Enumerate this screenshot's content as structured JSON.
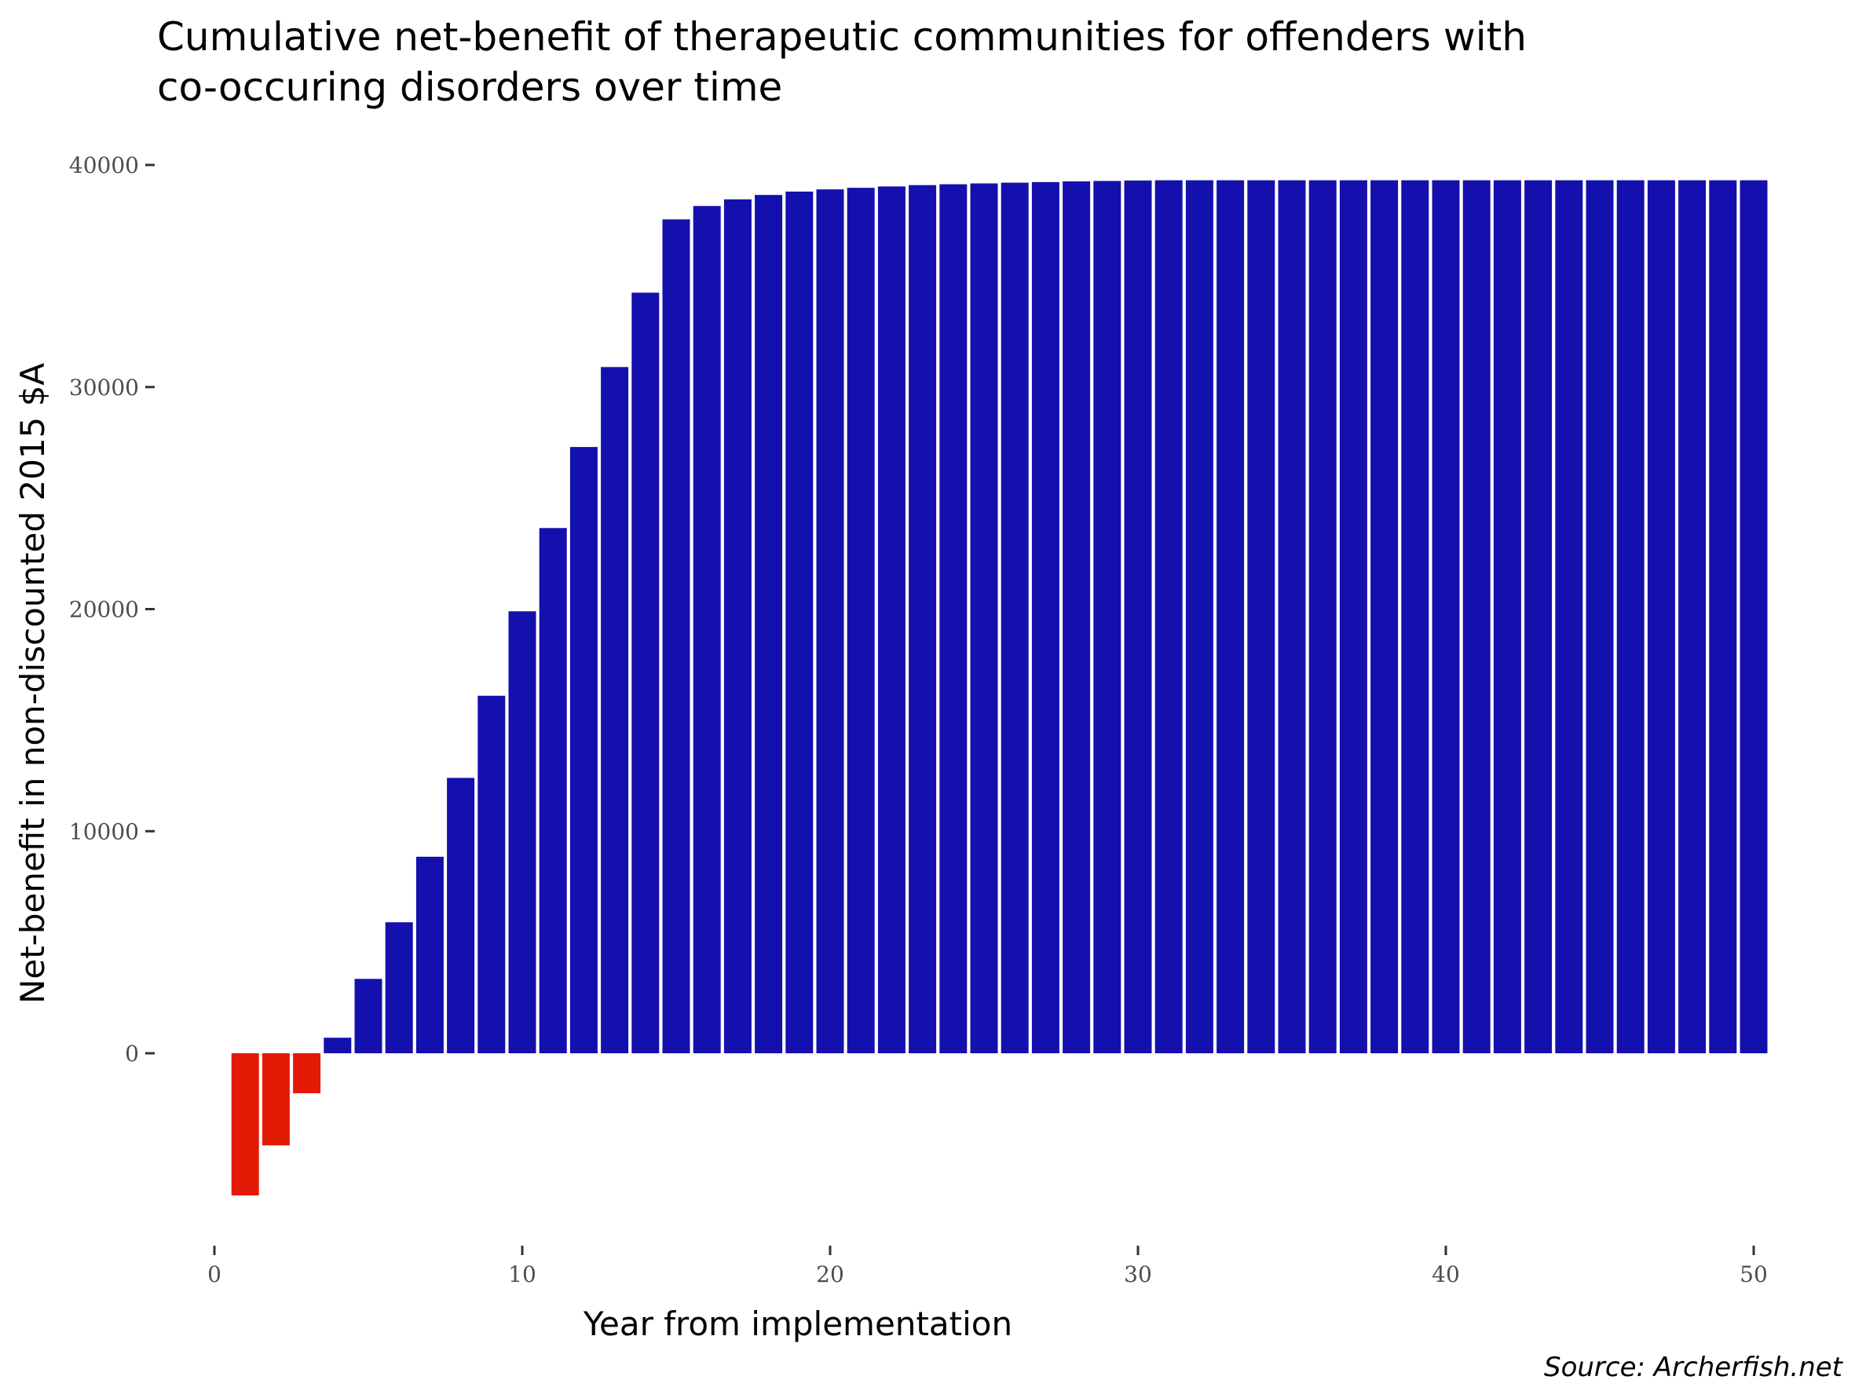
{
  "chart_data": {
    "type": "bar",
    "title_lines": [
      "Cumulative net-benefit of therapeutic communities for offenders with",
      "co-occuring disorders over time"
    ],
    "xlabel": "Year from implementation",
    "ylabel": "Net-benefit in non-discounted 2015 $A",
    "caption": "Source: Archerfish.net",
    "xlim": [
      0,
      50
    ],
    "ylim": [
      -8000,
      40000
    ],
    "x_ticks": [
      0,
      10,
      20,
      30,
      40,
      50
    ],
    "x_tick_labels": [
      "0",
      "10",
      "20",
      "30",
      "40",
      "50"
    ],
    "y_ticks": [
      0,
      10000,
      20000,
      30000,
      40000
    ],
    "y_tick_labels": [
      "0",
      "10000",
      "20000",
      "30000",
      "40000"
    ],
    "grid": false,
    "colors": {
      "negative": "#e31a06",
      "positive": "#1410ad",
      "background": "#ffffff"
    },
    "x": [
      1,
      2,
      3,
      4,
      5,
      6,
      7,
      8,
      9,
      10,
      11,
      12,
      13,
      14,
      15,
      16,
      17,
      18,
      19,
      20,
      21,
      22,
      23,
      24,
      25,
      26,
      27,
      28,
      29,
      30,
      31,
      32,
      33,
      34,
      35,
      36,
      37,
      38,
      39,
      40,
      41,
      42,
      43,
      44,
      45,
      46,
      47,
      48,
      49,
      50
    ],
    "values": [
      -6400,
      -4150,
      -1800,
      700,
      3350,
      5900,
      8850,
      12400,
      16100,
      19900,
      23650,
      27300,
      30900,
      34250,
      37550,
      38150,
      38450,
      38650,
      38800,
      38900,
      38970,
      39030,
      39090,
      39130,
      39170,
      39200,
      39230,
      39260,
      39280,
      39300,
      39310,
      39310,
      39310,
      39310,
      39310,
      39310,
      39310,
      39310,
      39310,
      39310,
      39310,
      39310,
      39310,
      39310,
      39310,
      39310,
      39310,
      39310,
      39310,
      39310
    ]
  }
}
